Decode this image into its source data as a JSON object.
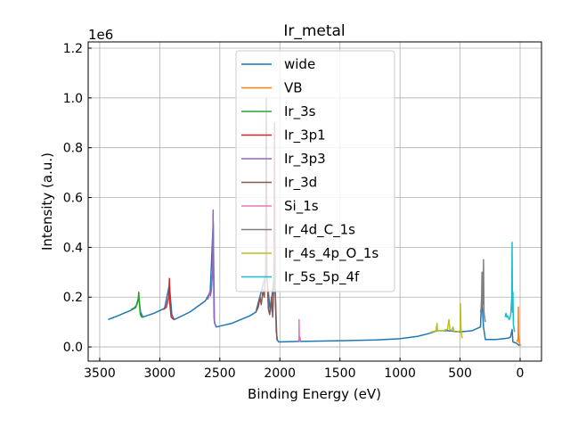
{
  "chart_data": {
    "type": "line",
    "title": "Ir_metal",
    "xlabel": "Binding Energy (eV)",
    "ylabel": "Intensity (a.u.)",
    "y_offset_label": "1e6",
    "xlim": [
      3596,
      -178
    ],
    "ylim": [
      -0.057,
      1.225
    ],
    "x_reversed": true,
    "grid": true,
    "legend_placement": "upper center",
    "xticks": [
      3500,
      3000,
      2500,
      2000,
      1500,
      1000,
      500,
      0
    ],
    "yticks": [
      0.0,
      0.2,
      0.4,
      0.6,
      0.8,
      1.0,
      1.2
    ],
    "ytick_labels": [
      "0.0",
      "0.2",
      "0.4",
      "0.6",
      "0.8",
      "1.0",
      "1.2"
    ],
    "series": [
      {
        "name": "wide",
        "color": "#1f77b4",
        "points": [
          [
            3430,
            0.11
          ],
          [
            3350,
            0.125
          ],
          [
            3250,
            0.145
          ],
          [
            3200,
            0.158
          ],
          [
            3175,
            0.2
          ],
          [
            3160,
            0.14
          ],
          [
            3140,
            0.12
          ],
          [
            3050,
            0.135
          ],
          [
            2960,
            0.155
          ],
          [
            2920,
            0.25
          ],
          [
            2900,
            0.13
          ],
          [
            2880,
            0.11
          ],
          [
            2750,
            0.14
          ],
          [
            2620,
            0.185
          ],
          [
            2580,
            0.22
          ],
          [
            2555,
            0.5
          ],
          [
            2545,
            0.1
          ],
          [
            2530,
            0.08
          ],
          [
            2400,
            0.095
          ],
          [
            2250,
            0.125
          ],
          [
            2200,
            0.14
          ],
          [
            2113,
            0.3
          ],
          [
            2080,
            0.14
          ],
          [
            2045,
            0.3
          ],
          [
            2025,
            0.03
          ],
          [
            2010,
            0.02
          ],
          [
            1840,
            0.022
          ],
          [
            1835,
            0.04
          ],
          [
            1830,
            0.022
          ],
          [
            1500,
            0.025
          ],
          [
            1200,
            0.028
          ],
          [
            1000,
            0.033
          ],
          [
            850,
            0.043
          ],
          [
            750,
            0.055
          ],
          [
            690,
            0.065
          ],
          [
            600,
            0.065
          ],
          [
            500,
            0.06
          ],
          [
            400,
            0.065
          ],
          [
            330,
            0.08
          ],
          [
            320,
            0.2
          ],
          [
            305,
            0.08
          ],
          [
            290,
            0.03
          ],
          [
            200,
            0.03
          ],
          [
            100,
            0.035
          ],
          [
            80,
            0.04
          ],
          [
            67,
            0.07
          ],
          [
            60,
            0.02
          ],
          [
            30,
            0.015
          ],
          [
            5,
            0.005
          ]
        ]
      },
      {
        "name": "VB",
        "color": "#ff7f0e",
        "points": [
          [
            25,
            0.02
          ],
          [
            20,
            0.03
          ],
          [
            16,
            0.03
          ],
          [
            15,
            0.16
          ],
          [
            13,
            0.05
          ],
          [
            8,
            0.02
          ],
          [
            3,
            0.01
          ],
          [
            -5,
            0.005
          ]
        ]
      },
      {
        "name": "Ir_3s",
        "color": "#2ca02c",
        "points": [
          [
            3240,
            0.15
          ],
          [
            3210,
            0.158
          ],
          [
            3190,
            0.17
          ],
          [
            3180,
            0.19
          ],
          [
            3175,
            0.22
          ],
          [
            3170,
            0.18
          ],
          [
            3162,
            0.13
          ],
          [
            3150,
            0.12
          ],
          [
            3140,
            0.118
          ]
        ]
      },
      {
        "name": "Ir_3p1",
        "color": "#d62728",
        "points": [
          [
            2970,
            0.15
          ],
          [
            2945,
            0.16
          ],
          [
            2935,
            0.18
          ],
          [
            2925,
            0.2
          ],
          [
            2920,
            0.275
          ],
          [
            2915,
            0.17
          ],
          [
            2905,
            0.12
          ],
          [
            2895,
            0.115
          ],
          [
            2885,
            0.11
          ]
        ]
      },
      {
        "name": "Ir_3p3",
        "color": "#9467bd",
        "points": [
          [
            2600,
            0.19
          ],
          [
            2585,
            0.22
          ],
          [
            2578,
            0.205
          ],
          [
            2570,
            0.23
          ],
          [
            2560,
            0.3
          ],
          [
            2556,
            0.55
          ],
          [
            2552,
            0.3
          ],
          [
            2548,
            0.12
          ],
          [
            2540,
            0.09
          ],
          [
            2530,
            0.082
          ]
        ]
      },
      {
        "name": "Ir_3d",
        "color": "#8c564b",
        "points": [
          [
            2200,
            0.14
          ],
          [
            2180,
            0.16
          ],
          [
            2165,
            0.2
          ],
          [
            2155,
            0.17
          ],
          [
            2140,
            0.23
          ],
          [
            2130,
            0.2
          ],
          [
            2118,
            0.3
          ],
          [
            2113,
            1.0
          ],
          [
            2108,
            0.3
          ],
          [
            2095,
            0.15
          ],
          [
            2085,
            0.13
          ],
          [
            2070,
            0.2
          ],
          [
            2060,
            0.12
          ],
          [
            2050,
            0.25
          ],
          [
            2045,
            0.9
          ],
          [
            2040,
            0.25
          ],
          [
            2030,
            0.06
          ],
          [
            2020,
            0.025
          ]
        ]
      },
      {
        "name": "Si_1s",
        "color": "#e377c2",
        "points": [
          [
            1850,
            0.022
          ],
          [
            1842,
            0.03
          ],
          [
            1840,
            0.11
          ],
          [
            1838,
            0.03
          ],
          [
            1830,
            0.022
          ]
        ]
      },
      {
        "name": "Ir_4d_C_1s",
        "color": "#7f7f7f",
        "points": [
          [
            330,
            0.14
          ],
          [
            322,
            0.16
          ],
          [
            317,
            0.3
          ],
          [
            313,
            0.17
          ],
          [
            308,
            0.2
          ],
          [
            305,
            0.35
          ],
          [
            301,
            0.14
          ],
          [
            296,
            0.12
          ],
          [
            290,
            0.1
          ]
        ]
      },
      {
        "name": "Ir_4s_4p_O_1s",
        "color": "#bcbd22",
        "points": [
          [
            750,
            0.058
          ],
          [
            700,
            0.065
          ],
          [
            692,
            0.095
          ],
          [
            688,
            0.065
          ],
          [
            650,
            0.065
          ],
          [
            605,
            0.07
          ],
          [
            592,
            0.11
          ],
          [
            585,
            0.07
          ],
          [
            570,
            0.065
          ],
          [
            560,
            0.08
          ],
          [
            548,
            0.06
          ],
          [
            520,
            0.06
          ],
          [
            500,
            0.065
          ],
          [
            497,
            0.175
          ],
          [
            492,
            0.07
          ],
          [
            485,
            0.04
          ],
          [
            480,
            0.035
          ]
        ]
      },
      {
        "name": "Ir_5s_5p_4f",
        "color": "#17becf",
        "points": [
          [
            125,
            0.12
          ],
          [
            118,
            0.135
          ],
          [
            112,
            0.12
          ],
          [
            105,
            0.125
          ],
          [
            90,
            0.11
          ],
          [
            78,
            0.13
          ],
          [
            70,
            0.2
          ],
          [
            67,
            0.42
          ],
          [
            64,
            0.14
          ],
          [
            60,
            0.22
          ],
          [
            56,
            0.09
          ],
          [
            50,
            0.07
          ],
          [
            45,
            0.06
          ]
        ]
      }
    ]
  }
}
